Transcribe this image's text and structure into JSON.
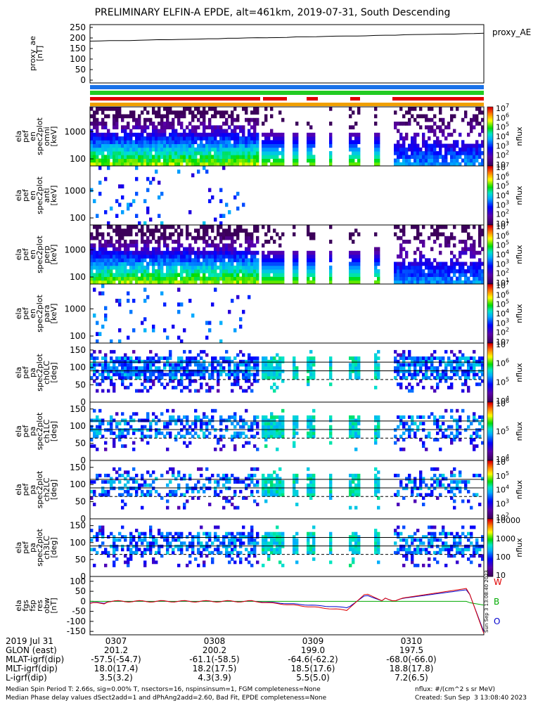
{
  "title": "PRELIMINARY ELFIN-A EPDE, alt=461km, 2019-07-31, South Descending",
  "colors": {
    "orange_bar": "#f0a000",
    "green_bar": "#22cc22",
    "red_bar": "#e00000",
    "blue_bar": "#1a72e8",
    "line_w": "#e00000",
    "line_b": "#00aa00",
    "line_o": "#0000cc"
  },
  "panels": {
    "proxy_ae": {
      "ylabel": [
        "proxy_ae",
        "[nT]"
      ],
      "yticks": [
        "0",
        "50",
        "100",
        "150",
        "200",
        "250"
      ],
      "legend": "proxy_AE",
      "series": {
        "start": 185,
        "end": 222
      }
    },
    "spec1": {
      "ylabel": [
        "ela",
        "pef",
        "en",
        "spec2plot",
        "omni",
        "[keV]"
      ],
      "yticks": [
        "100",
        "1000"
      ],
      "cbar_ticks": [
        "10",
        "10^2",
        "10^3",
        "10^4",
        "10^5",
        "10^6",
        "10^7"
      ],
      "cbar_label": "nflux"
    },
    "spec2": {
      "ylabel": [
        "ela",
        "pef",
        "en",
        "spec2plot",
        "anti",
        "[keV]"
      ],
      "yticks": [
        "100",
        "1000"
      ],
      "cbar_ticks": [
        "10^1",
        "10^2",
        "10^3",
        "10^4",
        "10^5",
        "10^6",
        "10^7"
      ],
      "cbar_label": "nflux"
    },
    "spec3": {
      "ylabel": [
        "ela",
        "pef",
        "en",
        "spec2plot",
        "perp",
        "[keV]"
      ],
      "yticks": [
        "100",
        "1000"
      ],
      "cbar_ticks": [
        "10^1",
        "10^2",
        "10^3",
        "10^4",
        "10^5",
        "10^6",
        "10^7"
      ],
      "cbar_label": "nflux"
    },
    "spec4": {
      "ylabel": [
        "ela",
        "pef",
        "en",
        "spec2plot",
        "para",
        "[keV]"
      ],
      "yticks": [
        "100",
        "1000"
      ],
      "cbar_ticks": [
        "10",
        "10^2",
        "10^3",
        "10^4",
        "10^5",
        "10^6",
        "10^7"
      ],
      "cbar_label": "nflux"
    },
    "pa0": {
      "ylabel": [
        "ela",
        "pef",
        "pa",
        "spec2plot",
        "ch0LC",
        "[deg]"
      ],
      "yticks": [
        "0",
        "50",
        "100",
        "150"
      ],
      "cbar_ticks": [
        "10^4",
        "10^5",
        "10^6",
        "10^7"
      ],
      "cbar_label": "nflux"
    },
    "pa1": {
      "ylabel": [
        "ela",
        "pef",
        "pa",
        "spec2plot",
        "ch1LC",
        "[deg]"
      ],
      "yticks": [
        "0",
        "50",
        "100",
        "150"
      ],
      "cbar_ticks": [
        "10^4",
        "10^5",
        "10^6"
      ],
      "cbar_label": "nflux"
    },
    "pa2": {
      "ylabel": [
        "ela",
        "pef",
        "pa",
        "spec2plot",
        "ch2LC",
        "[deg]"
      ],
      "yticks": [
        "0",
        "50",
        "100",
        "150"
      ],
      "cbar_ticks": [
        "10^2",
        "10^3",
        "10^4",
        "10^5",
        "10^6"
      ],
      "cbar_label": "nflux"
    },
    "pa3": {
      "ylabel": [
        "ela",
        "pef",
        "pa",
        "spec2plot",
        "ch3LC",
        "[deg]"
      ],
      "yticks": [
        "0",
        "50",
        "100",
        "150"
      ],
      "cbar_ticks": [
        "10",
        "100",
        "1000",
        "10000"
      ],
      "cbar_label": "nflux"
    },
    "mag": {
      "ylabel": [
        "ela",
        "fgs",
        "fsp",
        "res",
        "obw",
        "[nT]"
      ],
      "yticks": [
        "-150",
        "-100",
        "-50",
        "0",
        "50",
        "100"
      ],
      "labels": [
        "W",
        "B",
        "O"
      ],
      "side_note": "Sun Sep 3 13:08:40 2023"
    }
  },
  "chart_data": {
    "type": "heatmap",
    "time_ticks": [
      "03:07",
      "03:08",
      "03:09",
      "03:10"
    ],
    "proxy_ae_range": [
      0,
      250
    ],
    "energy_range_keV": [
      63,
      6500
    ],
    "pitch_angle_range_deg": [
      0,
      180
    ],
    "mag_range_nT": [
      -160,
      110
    ]
  },
  "footer": {
    "rows": [
      {
        "label": "2019 Jul 31",
        "values": [
          "0307",
          "0308",
          "0309",
          "0310"
        ]
      },
      {
        "label": "GLON (east)",
        "values": [
          "201.2",
          "200.2",
          "199.0",
          "197.5"
        ]
      },
      {
        "label": "MLAT-igrf(dip)",
        "values": [
          "-57.5(-54.7)",
          "-61.1(-58.5)",
          "-64.6(-62.2)",
          "-68.0(-66.0)"
        ]
      },
      {
        "label": "MLT-igrf(dip)",
        "values": [
          "18.0(17.4)",
          "18.2(17.5)",
          "18.5(17.6)",
          "18.8(17.8)"
        ]
      },
      {
        "label": "L-igrf(dip)",
        "values": [
          "3.5(3.2)",
          "4.3(3.9)",
          "5.5(5.0)",
          "7.2(6.5)"
        ]
      }
    ],
    "note1": "Median Spin Period T: 2.66s, sig=0.00% T, nsectors=16, nspinsinsum=1, FGM completeness=None",
    "note2": "Median Phase delay values dSect2add=1 and dPhAng2add=2.60, Bad Fit, EPDE completeness=None",
    "note3": "nflux: #/(cm^2 s sr MeV)",
    "note4": "Created: Sun Sep  3 13:08:40 2023"
  }
}
